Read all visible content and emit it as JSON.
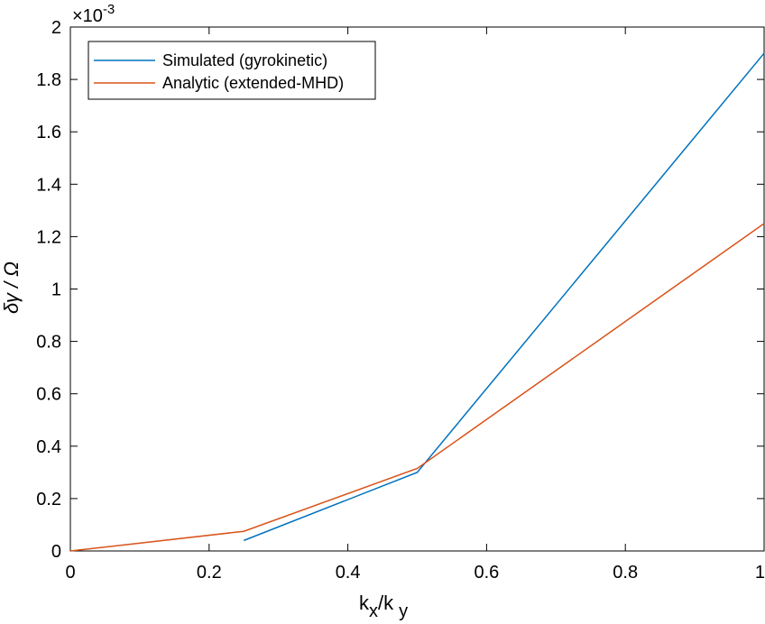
{
  "chart_data": {
    "type": "line",
    "title": "",
    "xlabel": "k_x/k_y",
    "xlabel_parts": {
      "k1": "k",
      "sub1": "x",
      "slash": "/",
      "k2": "k",
      "sub2": "y"
    },
    "ylabel": "δγ / Ω",
    "ylabel_text": "δγ / Ω",
    "y_exponent_label": {
      "times": "×10",
      "exponent": "-3"
    },
    "xlim": [
      0,
      1
    ],
    "ylim": [
      0,
      0.002
    ],
    "x_ticks": [
      0,
      0.2,
      0.4,
      0.6,
      0.8,
      1
    ],
    "x_tick_labels": [
      "0",
      "0.2",
      "0.4",
      "0.6",
      "0.8",
      "1"
    ],
    "y_ticks": [
      0,
      0.0002,
      0.0004,
      0.0006,
      0.0008,
      0.001,
      0.0012,
      0.0014,
      0.0016,
      0.0018,
      0.002
    ],
    "y_tick_labels": [
      "0",
      "0.2",
      "0.4",
      "0.6",
      "0.8",
      "1",
      "1.2",
      "1.4",
      "1.6",
      "1.8",
      "2"
    ],
    "grid": false,
    "legend_position": "top-left",
    "series": [
      {
        "name": "Simulated (gyrokinetic)",
        "color": "#0072BD",
        "x": [
          0.25,
          0.5,
          1.0
        ],
        "y": [
          4e-05,
          0.0003,
          0.0019
        ]
      },
      {
        "name": "Analytic (extended-MHD)",
        "color": "#D95319",
        "x": [
          0.0,
          0.25,
          0.5,
          1.0
        ],
        "y": [
          0.0,
          7.5e-05,
          0.000315,
          0.00125
        ]
      }
    ]
  }
}
